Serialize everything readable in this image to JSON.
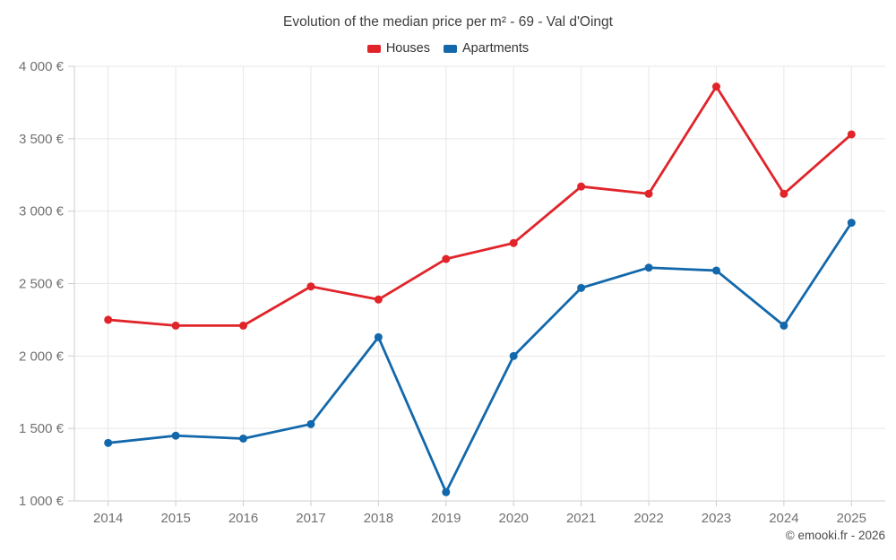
{
  "chart_data": {
    "type": "line",
    "title": "Evolution of the median price per m² - 69 - Val d'Oingt",
    "categories": [
      "2014",
      "2015",
      "2016",
      "2017",
      "2018",
      "2019",
      "2020",
      "2021",
      "2022",
      "2023",
      "2024",
      "2025"
    ],
    "series": [
      {
        "name": "Houses",
        "color": "#e0242a",
        "values": [
          2250,
          2210,
          2210,
          2480,
          2390,
          2670,
          2780,
          3170,
          3120,
          3860,
          3120,
          3530
        ]
      },
      {
        "name": "Apartments",
        "color": "#1268ab",
        "values": [
          1400,
          1450,
          1430,
          1530,
          2130,
          1060,
          2000,
          2470,
          2610,
          2590,
          2210,
          2920
        ]
      }
    ],
    "ylim": [
      1000,
      4000
    ],
    "ytick_step": 500,
    "ytick_labels": [
      "1 000 €",
      "1 500 €",
      "2 000 €",
      "2 500 €",
      "3 000 €",
      "3 500 €",
      "4 000 €"
    ],
    "xlabel": "",
    "ylabel": "",
    "grid": true,
    "legend_position": "top",
    "marker": "circle"
  },
  "footer": {
    "text": "© emooki.fr - 2026"
  },
  "theme": {
    "grid_color": "#e7e7e7",
    "axis_color": "#cccccc",
    "tick_text_color": "#717171"
  }
}
